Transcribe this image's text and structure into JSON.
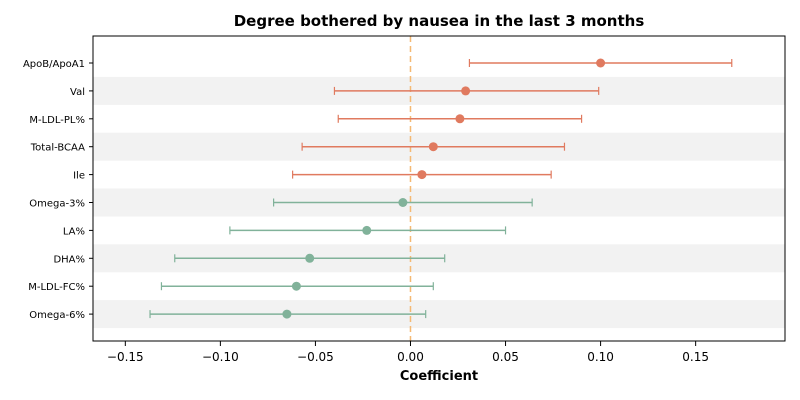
{
  "chart_data": {
    "type": "forest",
    "title": "Degree bothered by nausea in the last 3 months",
    "xlabel": "Coefficient",
    "ylabel": "",
    "xlim": [
      -0.167,
      0.197
    ],
    "xticks": [
      -0.15,
      -0.1,
      -0.05,
      0.0,
      0.05,
      0.1,
      0.15
    ],
    "xtick_labels": [
      "−0.15",
      "−0.10",
      "−0.05",
      "0.00",
      "0.05",
      "0.10",
      "0.15"
    ],
    "reference_line": 0.0,
    "alternating_row_shading": true,
    "rows": [
      {
        "label": "ApoB/ApoA1",
        "coef": 0.1,
        "lo": 0.031,
        "hi": 0.169,
        "group": "positive"
      },
      {
        "label": "Val",
        "coef": 0.029,
        "lo": -0.04,
        "hi": 0.099,
        "group": "positive"
      },
      {
        "label": "M-LDL-PL%",
        "coef": 0.026,
        "lo": -0.038,
        "hi": 0.09,
        "group": "positive"
      },
      {
        "label": "Total-BCAA",
        "coef": 0.012,
        "lo": -0.057,
        "hi": 0.081,
        "group": "positive"
      },
      {
        "label": "Ile",
        "coef": 0.006,
        "lo": -0.062,
        "hi": 0.074,
        "group": "positive"
      },
      {
        "label": "Omega-3%",
        "coef": -0.004,
        "lo": -0.072,
        "hi": 0.064,
        "group": "negative"
      },
      {
        "label": "LA%",
        "coef": -0.023,
        "lo": -0.095,
        "hi": 0.05,
        "group": "negative"
      },
      {
        "label": "DHA%",
        "coef": -0.053,
        "lo": -0.124,
        "hi": 0.018,
        "group": "negative"
      },
      {
        "label": "M-LDL-FC%",
        "coef": -0.06,
        "lo": -0.131,
        "hi": 0.012,
        "group": "negative"
      },
      {
        "label": "Omega-6%",
        "coef": -0.065,
        "lo": -0.137,
        "hi": 0.008,
        "group": "negative"
      }
    ],
    "colors": {
      "positive": "#e07a5f",
      "negative": "#81b29a",
      "reference_line": "#f4b973",
      "row_shade": "#f2f2f2"
    }
  }
}
